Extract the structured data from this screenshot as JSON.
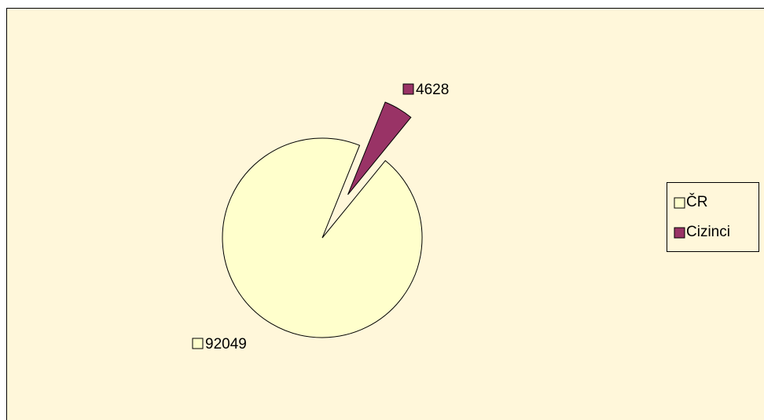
{
  "chart_data": {
    "type": "pie",
    "categories": [
      "ČR",
      "Cizinci"
    ],
    "values": [
      92049,
      4628
    ],
    "colors": [
      "#FFFFCC",
      "#993366"
    ],
    "legend": "right"
  }
}
